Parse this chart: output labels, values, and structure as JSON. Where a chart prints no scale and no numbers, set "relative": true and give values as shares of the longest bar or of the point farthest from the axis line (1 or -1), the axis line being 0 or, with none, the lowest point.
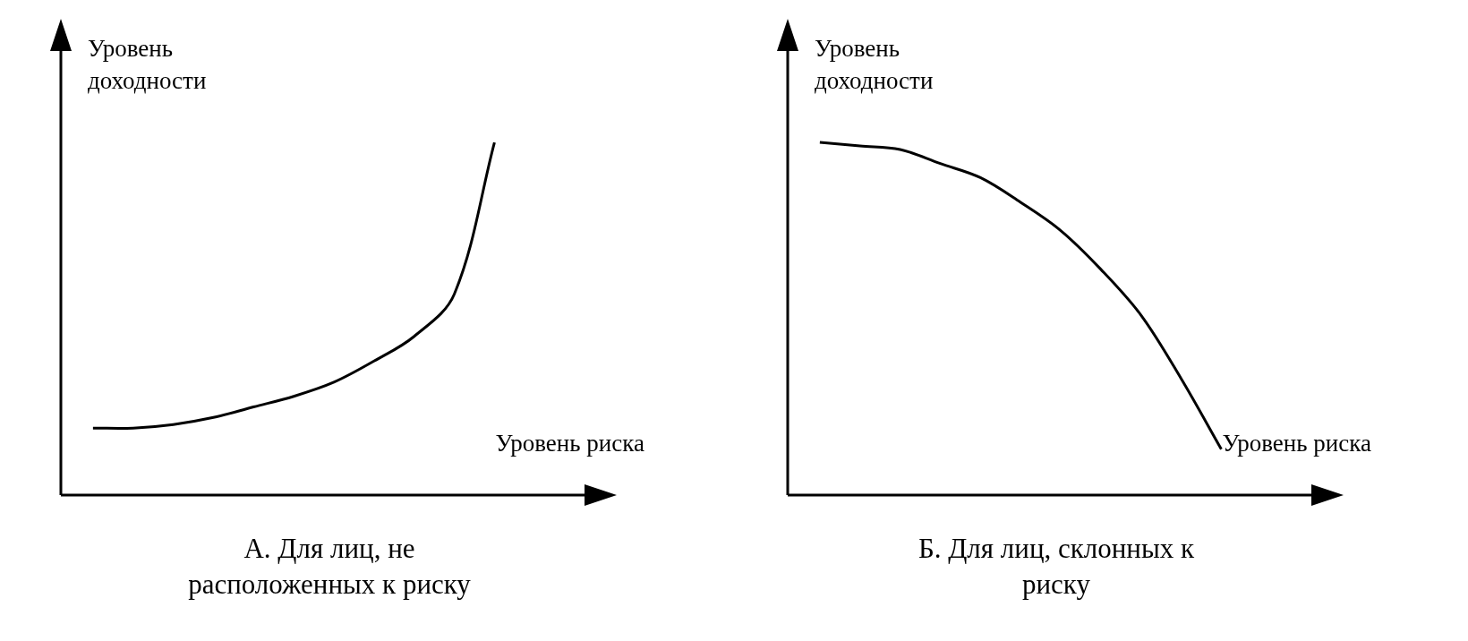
{
  "chart_data": [
    {
      "type": "line",
      "relative": true,
      "title": "А. Для лиц, не расположенных к риску",
      "xlabel": "Уровень риска",
      "ylabel": "Уровень доходности",
      "categories": [
        null,
        null,
        null,
        null,
        null,
        null,
        null,
        null,
        null,
        null,
        null
      ],
      "series": [
        {
          "color": "#000000",
          "values": [
            0.19,
            0.19,
            0.2,
            0.22,
            0.25,
            0.28,
            0.32,
            0.38,
            0.45,
            0.57,
            1
          ]
        }
      ]
    },
    {
      "type": "line",
      "relative": true,
      "title": "Б. Для лиц, склонных к риску",
      "xlabel": "Уровень риска",
      "ylabel": "Уровень доходности",
      "categories": [
        null,
        null,
        null,
        null,
        null,
        null,
        null,
        null,
        null,
        null,
        null
      ],
      "series": [
        {
          "color": "#000000",
          "values": [
            1,
            0.99,
            0.98,
            0.94,
            0.9,
            0.83,
            0.75,
            0.64,
            0.51,
            0.33,
            0.13
          ]
        }
      ]
    }
  ]
}
